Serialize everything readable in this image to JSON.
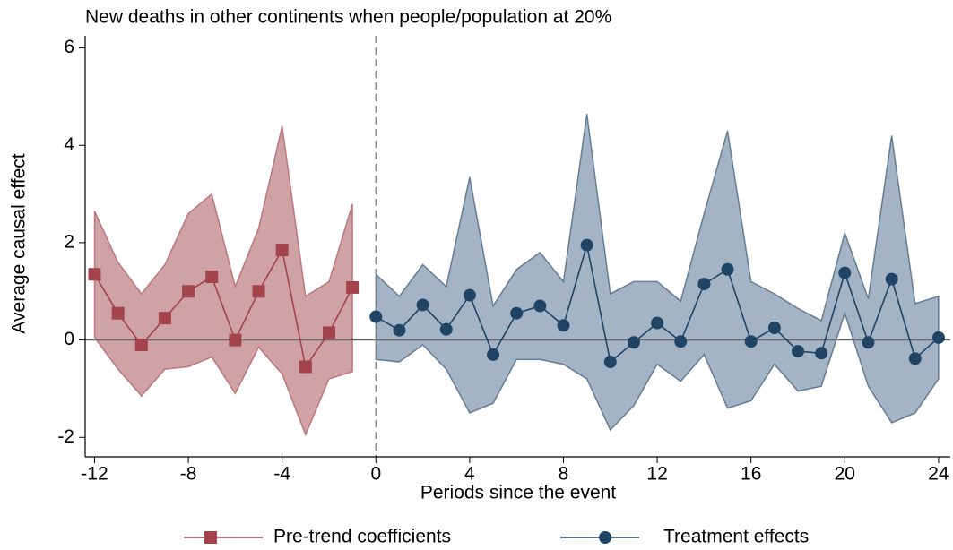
{
  "chart_data": {
    "type": "event_study",
    "title": "New deaths in other continents when people/population at 20%",
    "x_label": "Periods since the event",
    "y_label": "Average causal effect",
    "xlim": [
      -12.4,
      24.5
    ],
    "ylim": [
      -2.4,
      6.25
    ],
    "xticks": [
      -12,
      -8,
      -4,
      0,
      4,
      8,
      12,
      16,
      20,
      24
    ],
    "yticks": [
      -2,
      0,
      2,
      4,
      6
    ],
    "xline": 0,
    "yline": 0,
    "series": [
      {
        "name": "Pre-trend coefficients",
        "color": "#a3434b",
        "band_color": "#cfa2a6",
        "marker": "square",
        "x": [
          -12,
          -11,
          -10,
          -9,
          -8,
          -7,
          -6,
          -5,
          -4,
          -3,
          -2,
          -1
        ],
        "values": [
          1.35,
          0.55,
          -0.1,
          0.45,
          1.0,
          1.3,
          0.0,
          1.0,
          1.85,
          -0.55,
          0.15,
          1.08
        ],
        "upper": [
          2.65,
          1.6,
          0.95,
          1.55,
          2.6,
          3.0,
          1.1,
          2.3,
          4.4,
          0.9,
          1.2,
          2.8
        ],
        "lower": [
          0.05,
          -0.6,
          -1.15,
          -0.6,
          -0.55,
          -0.35,
          -1.1,
          -0.15,
          -0.7,
          -1.95,
          -0.8,
          -0.65
        ]
      },
      {
        "name": "Treatment effects",
        "color": "#1f4466",
        "band_color": "#a5b4c4",
        "marker": "circle",
        "x": [
          0,
          1,
          2,
          3,
          4,
          5,
          6,
          7,
          8,
          9,
          10,
          11,
          12,
          13,
          14,
          15,
          16,
          17,
          18,
          19,
          20,
          21,
          22,
          23,
          24
        ],
        "values": [
          0.48,
          0.2,
          0.72,
          0.22,
          0.92,
          -0.3,
          0.55,
          0.7,
          0.3,
          1.95,
          -0.45,
          -0.05,
          0.35,
          -0.03,
          1.15,
          1.45,
          -0.03,
          0.25,
          -0.23,
          -0.27,
          1.38,
          -0.05,
          1.25,
          -0.38,
          0.05
        ],
        "upper": [
          1.35,
          0.9,
          1.55,
          1.1,
          3.35,
          0.7,
          1.45,
          1.8,
          1.2,
          4.65,
          0.95,
          1.2,
          1.2,
          0.8,
          2.6,
          4.3,
          1.2,
          0.95,
          0.65,
          0.4,
          2.2,
          0.85,
          4.2,
          0.75,
          0.9
        ],
        "lower": [
          -0.4,
          -0.45,
          -0.1,
          -0.6,
          -1.5,
          -1.3,
          -0.4,
          -0.4,
          -0.5,
          -0.8,
          -1.85,
          -1.35,
          -0.5,
          -0.85,
          -0.3,
          -1.4,
          -1.25,
          -0.5,
          -1.05,
          -0.95,
          0.55,
          -0.95,
          -1.7,
          -1.5,
          -0.8
        ]
      }
    ]
  }
}
